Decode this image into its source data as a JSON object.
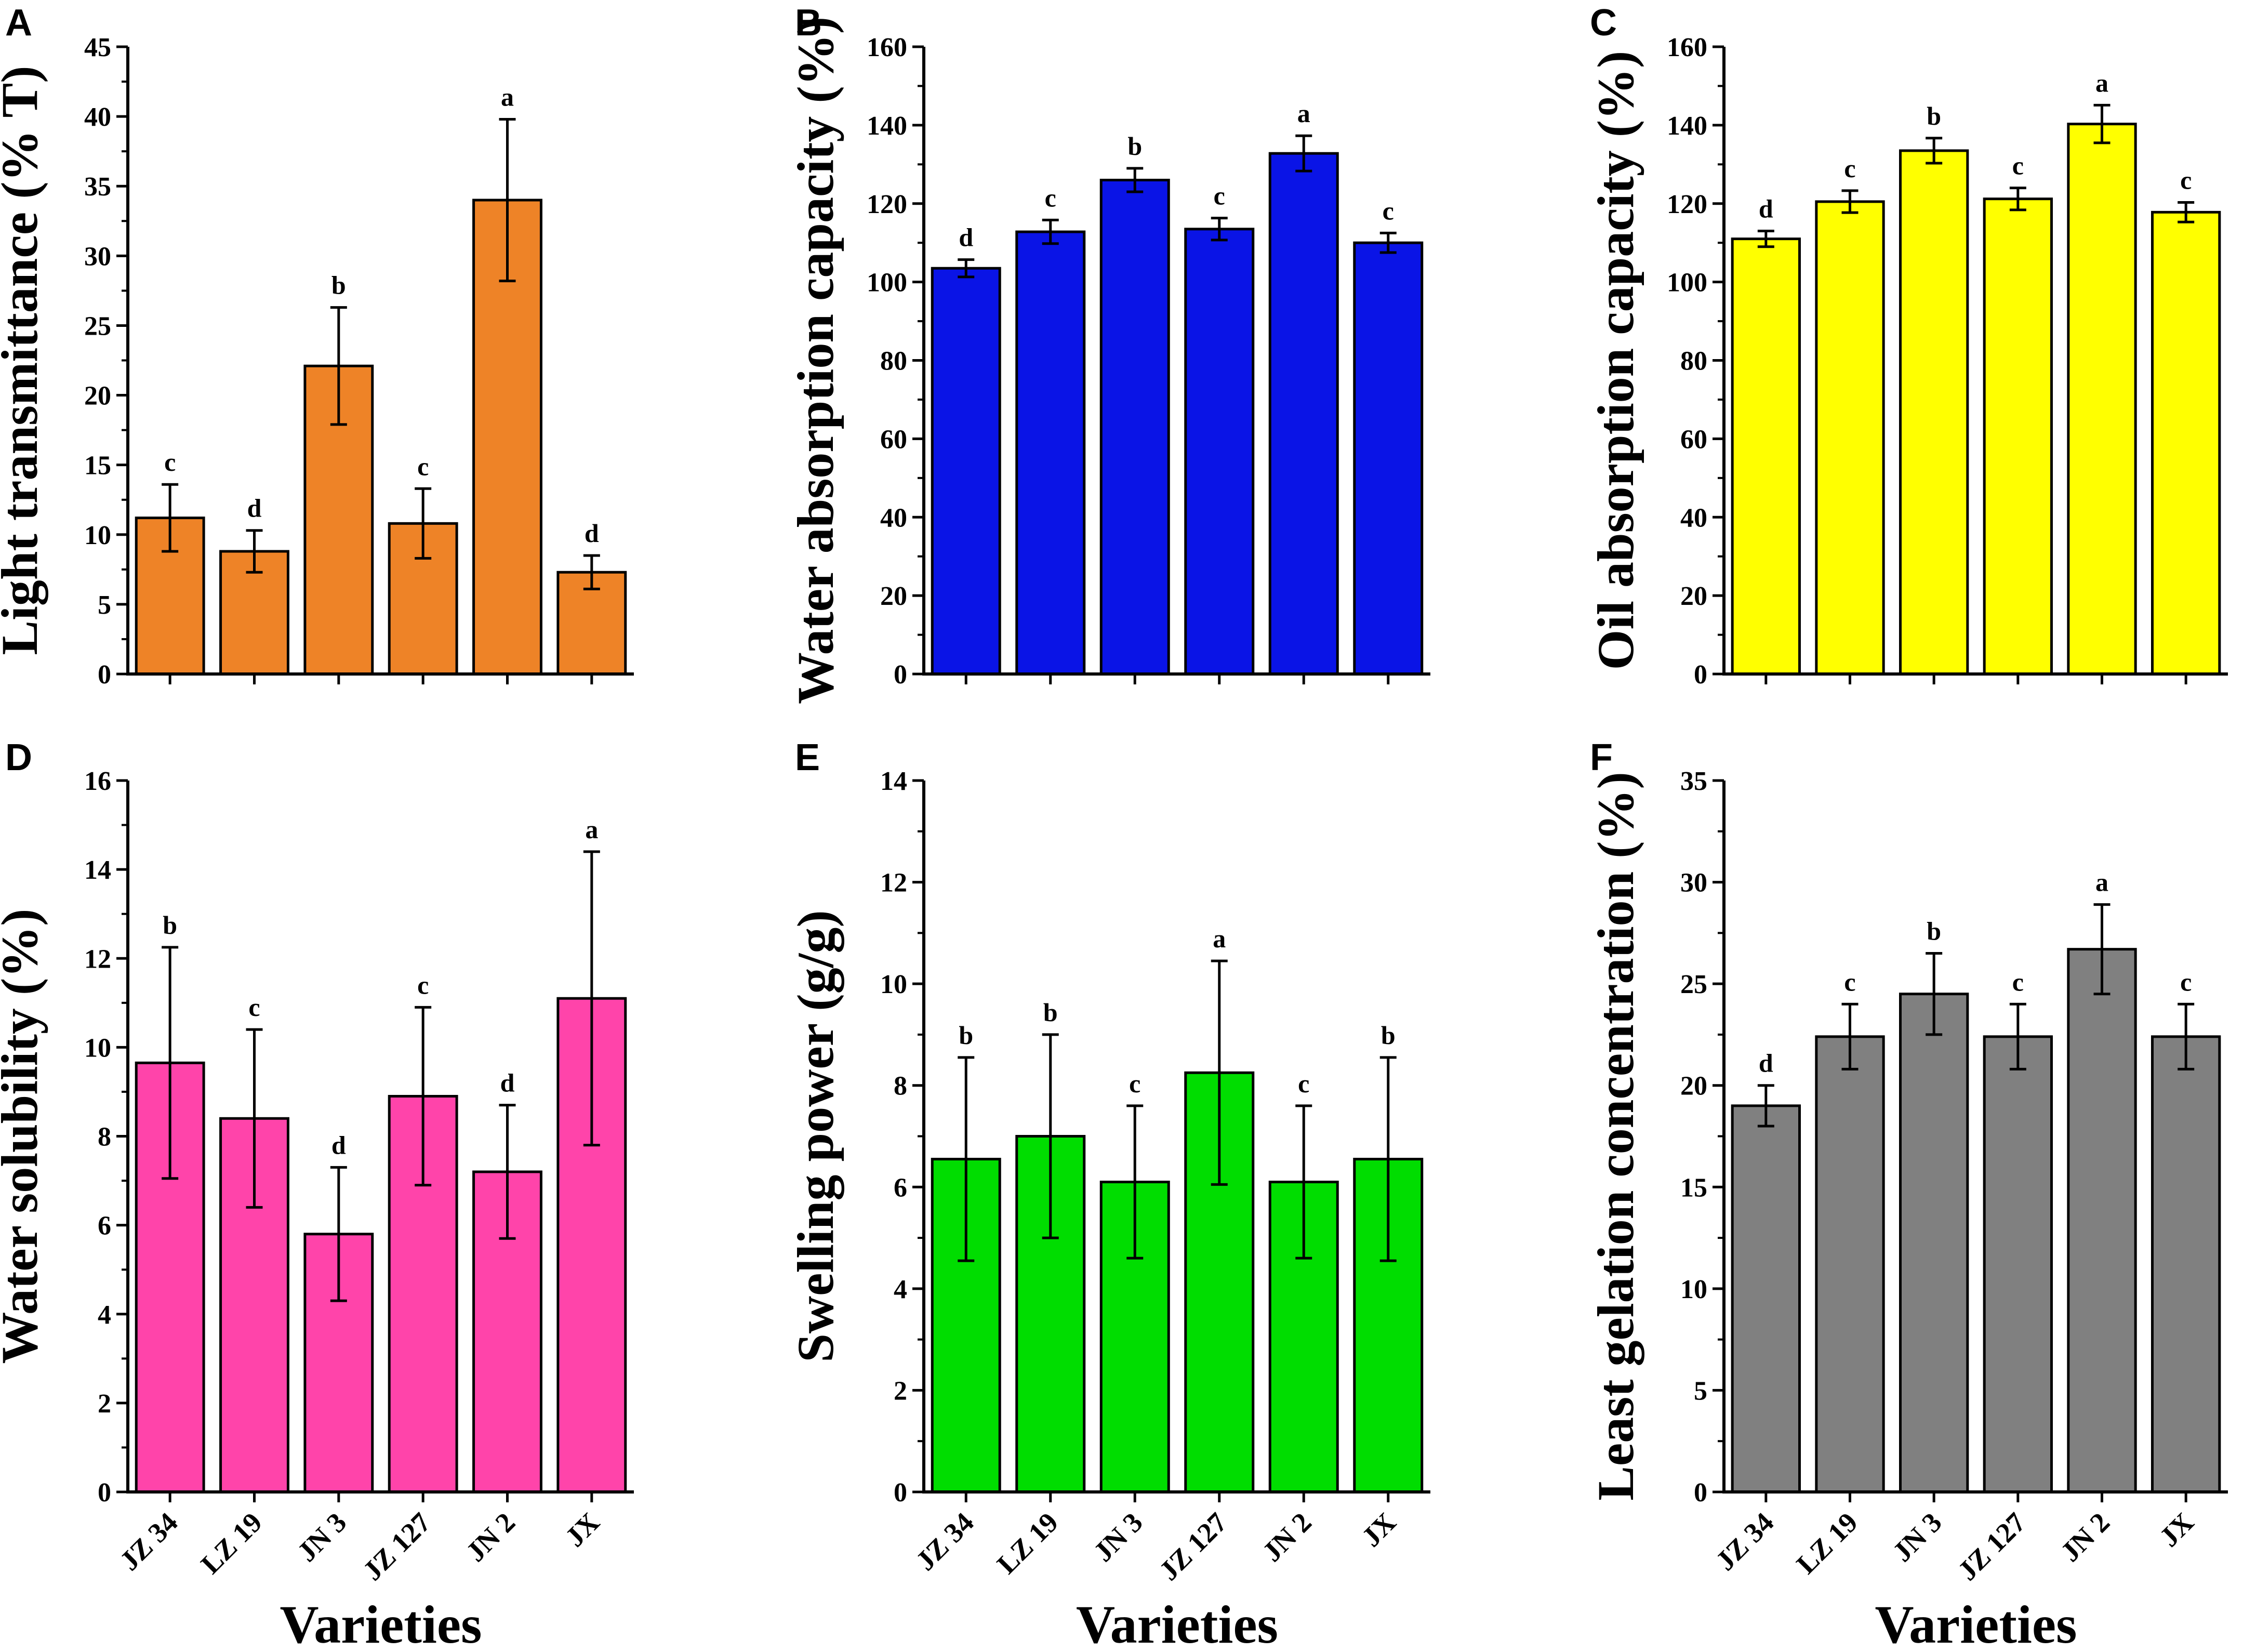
{
  "categories": [
    "JZ 34",
    "LZ 19",
    "JN 3",
    "JZ 127",
    "JN 2",
    "JX"
  ],
  "chart_data": [
    {
      "id": "A",
      "type": "bar",
      "panel_letter": "A",
      "ylabel": "Light transmittance (% T)",
      "xlabel": "",
      "ylim": [
        0,
        45
      ],
      "ticks": [
        0,
        5,
        10,
        15,
        20,
        25,
        30,
        35,
        40,
        45
      ],
      "color": "#EE8327",
      "values": [
        11.2,
        8.8,
        22.1,
        10.8,
        34.0,
        7.3
      ],
      "errors": [
        2.4,
        1.5,
        4.2,
        2.5,
        5.8,
        1.2
      ],
      "letters": [
        "c",
        "d",
        "b",
        "c",
        "a",
        "d"
      ],
      "show_categories": false
    },
    {
      "id": "B",
      "type": "bar",
      "panel_letter": "B",
      "ylabel": "Water absorption capacity (%)",
      "xlabel": "",
      "ylim": [
        0,
        160
      ],
      "ticks": [
        0,
        20,
        40,
        60,
        80,
        100,
        120,
        140,
        160
      ],
      "color": "#0A14E6",
      "values": [
        103.5,
        112.8,
        126.0,
        113.5,
        132.8,
        110.0
      ],
      "errors": [
        2.2,
        3.0,
        3.0,
        2.8,
        4.5,
        2.5
      ],
      "letters": [
        "d",
        "c",
        "b",
        "c",
        "a",
        "c"
      ],
      "show_categories": false
    },
    {
      "id": "C",
      "type": "bar",
      "panel_letter": "C",
      "ylabel": "Oil absorption capacity (%)",
      "xlabel": "",
      "ylim": [
        0,
        160
      ],
      "ticks": [
        0,
        20,
        40,
        60,
        80,
        100,
        120,
        140,
        160
      ],
      "color": "#FFFF00",
      "values": [
        111.0,
        120.5,
        133.5,
        121.2,
        140.3,
        117.8
      ],
      "errors": [
        2.0,
        2.8,
        3.2,
        2.8,
        4.8,
        2.5
      ],
      "letters": [
        "d",
        "c",
        "b",
        "c",
        "a",
        "c"
      ],
      "show_categories": false
    },
    {
      "id": "D",
      "type": "bar",
      "panel_letter": "D",
      "ylabel": "Water solubility (%)",
      "xlabel": "Varieties",
      "ylim": [
        0,
        16
      ],
      "ticks": [
        0,
        2,
        4,
        6,
        8,
        10,
        12,
        14,
        16
      ],
      "color": "#FF44AA",
      "values": [
        9.65,
        8.4,
        5.8,
        8.9,
        7.2,
        11.1
      ],
      "errors": [
        2.6,
        2.0,
        1.5,
        2.0,
        1.5,
        3.3
      ],
      "letters": [
        "b",
        "c",
        "d",
        "c",
        "d",
        "a"
      ],
      "show_categories": true
    },
    {
      "id": "E",
      "type": "bar",
      "panel_letter": "E",
      "ylabel": "Swelling power (g/g)",
      "xlabel": "Varieties",
      "ylim": [
        0,
        14
      ],
      "ticks": [
        0,
        2,
        4,
        6,
        8,
        10,
        12,
        14
      ],
      "color": "#00DD00",
      "values": [
        6.55,
        7.0,
        6.1,
        8.25,
        6.1,
        6.55
      ],
      "errors": [
        2.0,
        2.0,
        1.5,
        2.2,
        1.5,
        2.0
      ],
      "letters": [
        "b",
        "b",
        "c",
        "a",
        "c",
        "b"
      ],
      "show_categories": true
    },
    {
      "id": "F",
      "type": "bar",
      "panel_letter": "F",
      "ylabel": "Least gelation concentration (%)",
      "xlabel": "Varieties",
      "ylim": [
        0,
        35
      ],
      "ticks": [
        0,
        5,
        10,
        15,
        20,
        25,
        30,
        35
      ],
      "color": "#808080",
      "values": [
        19.0,
        22.4,
        24.5,
        22.4,
        26.7,
        22.4
      ],
      "errors": [
        1.0,
        1.6,
        2.0,
        1.6,
        2.2,
        1.6
      ],
      "letters": [
        "d",
        "c",
        "b",
        "c",
        "a",
        "c"
      ],
      "show_categories": true
    }
  ]
}
